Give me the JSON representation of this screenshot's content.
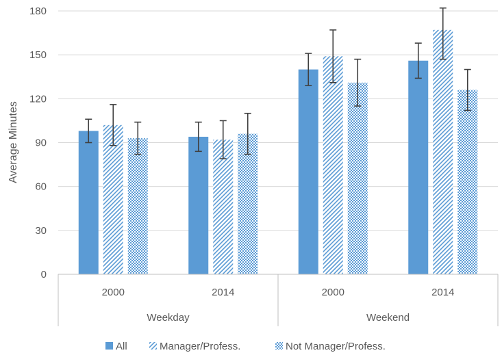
{
  "chart_data": {
    "type": "bar",
    "ylabel": "Average Minutes",
    "xlabel": "",
    "ylim": [
      0,
      180
    ],
    "yticks": [
      "0",
      "30",
      "60",
      "90",
      "120",
      "150",
      "180"
    ],
    "grid": true,
    "legend_position": "bottom",
    "groups": [
      {
        "label": "Weekday",
        "categories": [
          "2000",
          "2014"
        ]
      },
      {
        "label": "Weekend",
        "categories": [
          "2000",
          "2014"
        ]
      }
    ],
    "categories": [
      "Weekday 2000",
      "Weekday 2014",
      "Weekend 2000",
      "Weekend 2014"
    ],
    "series": [
      {
        "name": "All",
        "values": [
          98,
          94,
          140,
          146
        ],
        "err_low": [
          90,
          84,
          129,
          134
        ],
        "err_high": [
          106,
          104,
          151,
          158
        ],
        "color": "#5b9bd5",
        "pattern": "solid"
      },
      {
        "name": "Manager/Profess.",
        "values": [
          102,
          92,
          149,
          167
        ],
        "err_low": [
          88,
          79,
          131,
          147
        ],
        "err_high": [
          116,
          105,
          167,
          182
        ],
        "color": "#5b9bd5",
        "pattern": "diagonal"
      },
      {
        "name": "Not Manager/Profess.",
        "values": [
          93,
          96,
          131,
          126
        ],
        "err_low": [
          82,
          82,
          115,
          112
        ],
        "err_high": [
          104,
          110,
          147,
          140
        ],
        "color": "#5b9bd5",
        "pattern": "dotted"
      }
    ]
  }
}
